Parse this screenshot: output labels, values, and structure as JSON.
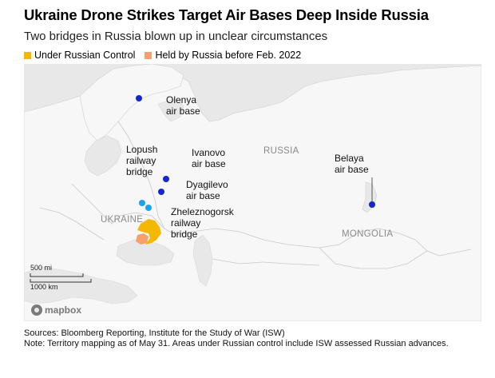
{
  "header": {
    "title": "Ukraine Drone Strikes Target Air Bases Deep Inside Russia",
    "subtitle": "Two bridges in Russia blown up in unclear circumstances"
  },
  "legend": [
    {
      "label": "Under Russian Control",
      "color": "#f5b800"
    },
    {
      "label": "Held by Russia before Feb. 2022",
      "color": "#f5a070"
    }
  ],
  "map": {
    "countries": {
      "russia": "RUSSIA",
      "ukraine": "UKRAINE",
      "mongolia": "MONGOLIA"
    },
    "markers": {
      "olenya": {
        "line1": "Olenya",
        "line2": "air base",
        "color": "#1426cc"
      },
      "ivanovo": {
        "line1": "Ivanovo",
        "line2": "air base",
        "color": "#1426cc"
      },
      "dyagilevo": {
        "line1": "Dyagilevo",
        "line2": "air base",
        "color": "#1426cc"
      },
      "belaya": {
        "line1": "Belaya",
        "line2": "air base",
        "color": "#1426cc"
      },
      "lopush": {
        "line1": "Lopush",
        "line2": "railway",
        "line3": "bridge",
        "color": "#1aa3e8"
      },
      "zheleznogorsk": {
        "line1": "Zheleznogorsk",
        "line2": "railway",
        "line3": "bridge",
        "color": "#1aa3e8"
      }
    },
    "scale": {
      "miles": "500 mi",
      "km": "1000 km"
    },
    "attribution": "mapbox"
  },
  "footer": {
    "sources": "Sources: Bloomberg Reporting, Institute for the Study of War (ISW)",
    "note": "Note: Territory mapping as of May 31. Areas under Russian control include ISW assessed Russian advances."
  }
}
